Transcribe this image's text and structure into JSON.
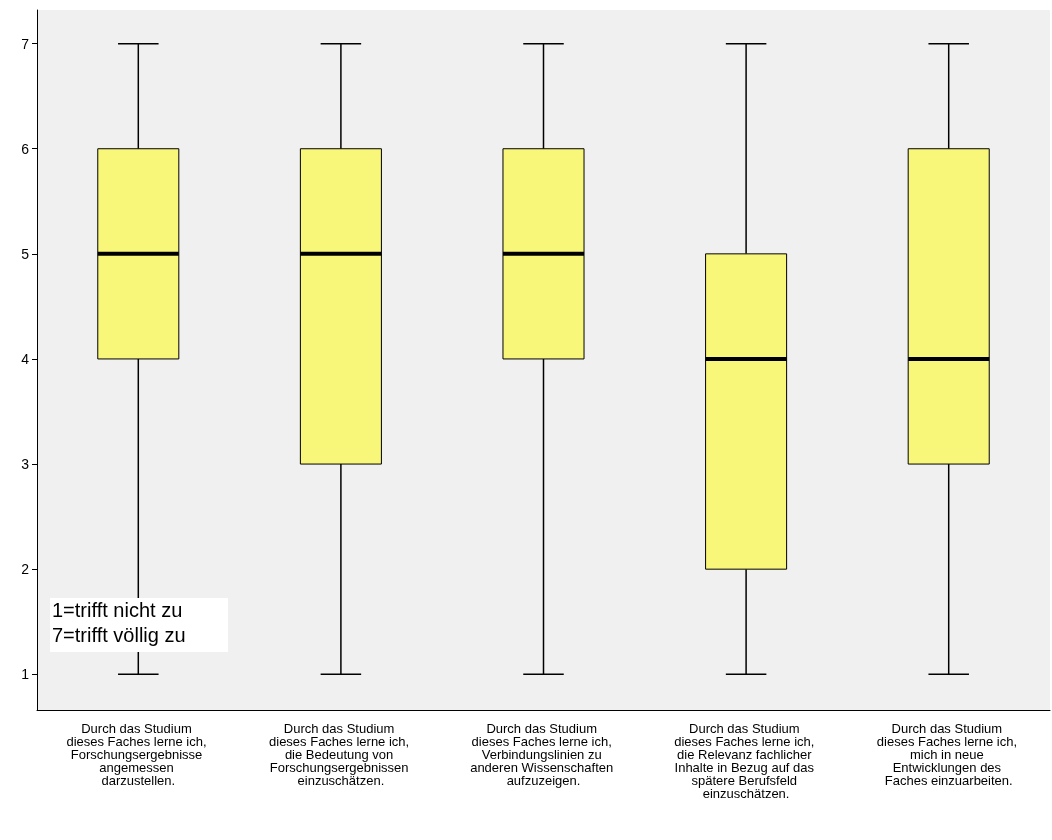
{
  "chart_data": {
    "type": "box",
    "categories": [
      "Durch das Studium dieses Faches lerne ich, Forschungsergebnisse angemessen darzustellen.",
      "Durch das Studium dieses Faches lerne ich, die Bedeutung von Forschungsergebnissen einzuschätzen.",
      "Durch das Studium dieses Faches lerne ich, Verbindungslinien zu anderen Wissenschaften aufzuzeigen.",
      "Durch das Studium dieses Faches lerne ich, die Relevanz fachlicher Inhalte in Bezug auf das spätere Berufsfeld einzuschätzen.",
      "Durch das Studium dieses Faches lerne ich, mich in neue Entwicklungen des Faches einzuarbeiten."
    ],
    "boxes": [
      {
        "low": 1,
        "q1": 4,
        "median": 5,
        "q3": 6,
        "high": 7
      },
      {
        "low": 1,
        "q1": 3,
        "median": 5,
        "q3": 6,
        "high": 7
      },
      {
        "low": 1,
        "q1": 4,
        "median": 5,
        "q3": 6,
        "high": 7
      },
      {
        "low": 1,
        "q1": 2,
        "median": 4,
        "q3": 5,
        "high": 7
      },
      {
        "low": 1,
        "q1": 3,
        "median": 4,
        "q3": 6,
        "high": 7
      }
    ],
    "color": "#f8f77a",
    "ylim": [
      0.66,
      7.32
    ],
    "yticks": [
      1,
      2,
      3,
      4,
      5,
      6,
      7
    ],
    "grid": false,
    "annotations": [
      "1=trifft nicht zu",
      "7=trifft völlig zu"
    ]
  }
}
